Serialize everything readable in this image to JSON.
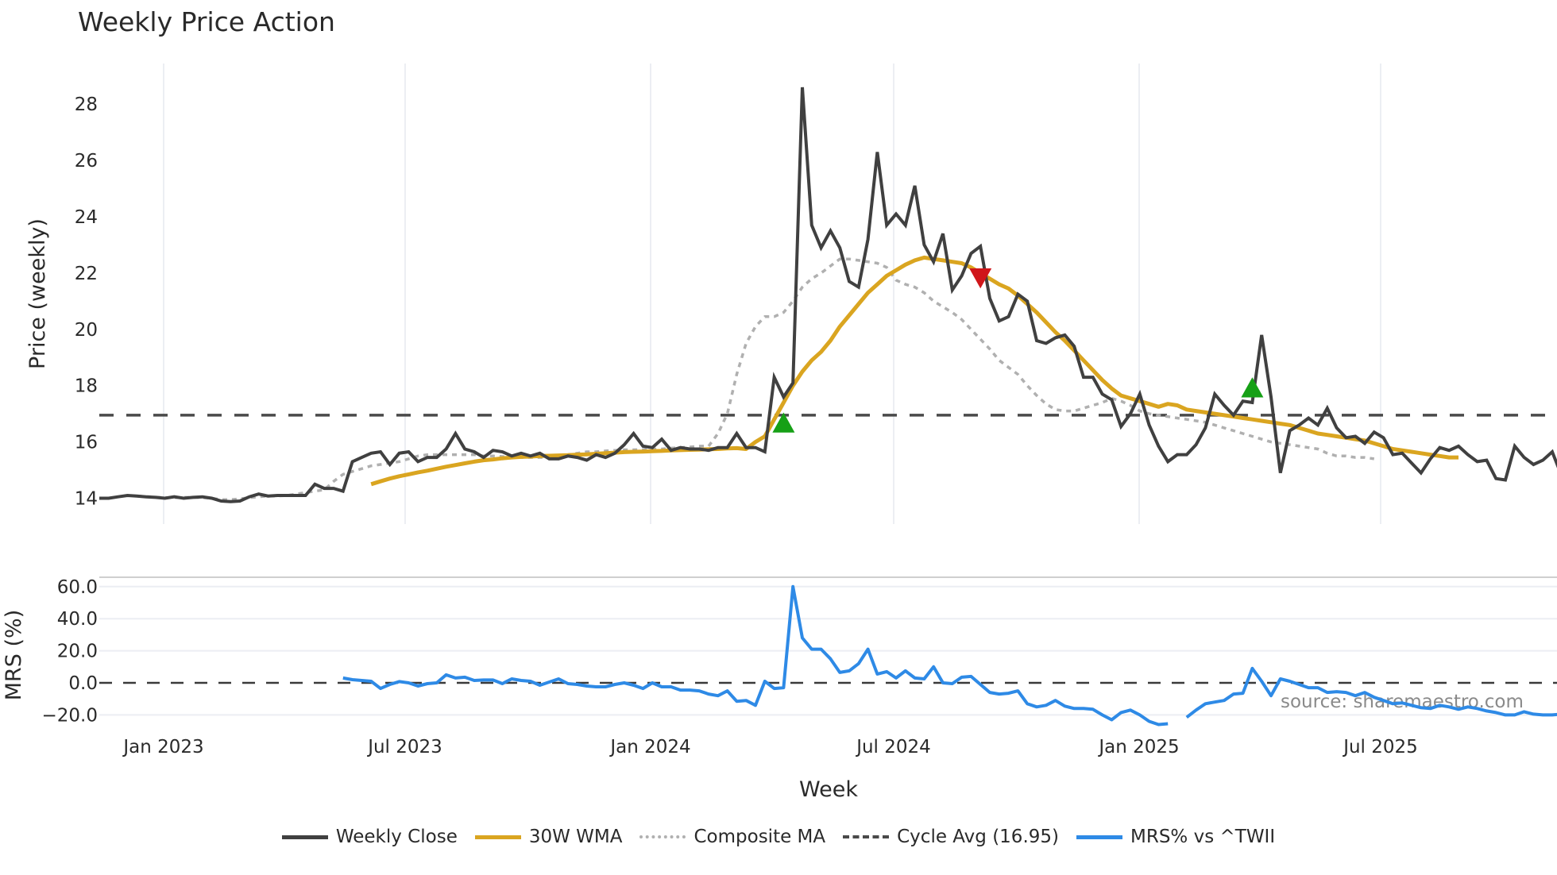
{
  "title": "Weekly Price Action",
  "chart_data": [
    {
      "type": "line",
      "panel": "price",
      "title": "Weekly Price Action",
      "ylabel": "Price (weekly)",
      "xlabel": "Week",
      "ylim": [
        13.2,
        29.2
      ],
      "yticks": [
        14,
        16,
        18,
        20,
        22,
        24,
        26,
        28
      ],
      "xticks": [
        "Jan 2023",
        "Jul 2023",
        "Jan 2024",
        "Jul 2024",
        "Jan 2025",
        "Jul 2025"
      ],
      "grid": "vertical",
      "series": [
        {
          "name": "Weekly Close",
          "color": "#404040",
          "values": [
            14.0,
            14.0,
            14.05,
            14.1,
            14.08,
            14.05,
            14.03,
            14.0,
            14.05,
            14.0,
            14.03,
            14.05,
            14.0,
            13.9,
            13.88,
            13.9,
            14.05,
            14.15,
            14.08,
            14.1,
            14.1,
            14.1,
            14.1,
            14.5,
            14.35,
            14.35,
            14.25,
            15.3,
            15.45,
            15.6,
            15.65,
            15.2,
            15.6,
            15.65,
            15.3,
            15.45,
            15.45,
            15.75,
            16.3,
            15.75,
            15.65,
            15.45,
            15.7,
            15.65,
            15.5,
            15.6,
            15.5,
            15.6,
            15.4,
            15.4,
            15.5,
            15.45,
            15.35,
            15.55,
            15.45,
            15.6,
            15.9,
            16.3,
            15.85,
            15.8,
            16.1,
            15.7,
            15.8,
            15.75,
            15.75,
            15.7,
            15.8,
            15.8,
            16.3,
            15.8,
            15.8,
            15.65,
            18.3,
            17.6,
            18.1,
            28.6,
            23.7,
            22.9,
            23.5,
            22.9,
            21.7,
            21.5,
            23.2,
            26.3,
            23.7,
            24.1,
            23.7,
            25.1,
            23.0,
            22.4,
            23.4,
            21.4,
            21.9,
            22.7,
            22.95,
            21.1,
            20.3,
            20.45,
            21.25,
            21.0,
            19.6,
            19.5,
            19.7,
            19.8,
            19.4,
            18.3,
            18.3,
            17.7,
            17.5,
            16.55,
            17.0,
            17.7,
            16.6,
            15.85,
            15.3,
            15.55,
            15.55,
            15.9,
            16.5,
            17.7,
            17.3,
            16.95,
            17.45,
            17.4,
            19.8,
            17.6,
            14.9,
            16.4,
            16.6,
            16.85,
            16.6,
            17.2,
            16.5,
            16.15,
            16.2,
            15.95,
            16.35,
            16.15,
            15.55,
            15.6,
            15.25,
            14.9,
            15.4,
            15.8,
            15.7,
            15.85,
            15.55,
            15.3,
            15.35,
            14.7,
            14.65,
            15.85,
            15.45,
            15.2,
            15.35,
            15.65,
            14.8
          ]
        },
        {
          "name": "30W WMA",
          "color": "#DAA520",
          "start_index": 29,
          "values": [
            14.5,
            14.6,
            14.7,
            14.78,
            14.85,
            14.92,
            14.98,
            15.05,
            15.12,
            15.18,
            15.24,
            15.3,
            15.35,
            15.38,
            15.42,
            15.45,
            15.47,
            15.48,
            15.5,
            15.51,
            15.52,
            15.53,
            15.55,
            15.56,
            15.58,
            15.6,
            15.62,
            15.64,
            15.65,
            15.66,
            15.67,
            15.68,
            15.7,
            15.71,
            15.72,
            15.73,
            15.74,
            15.75,
            15.77,
            15.78,
            15.75,
            16.0,
            16.2,
            16.8,
            17.4,
            18.0,
            18.5,
            18.9,
            19.2,
            19.6,
            20.1,
            20.5,
            20.9,
            21.3,
            21.6,
            21.9,
            22.1,
            22.3,
            22.45,
            22.55,
            22.5,
            22.45,
            22.4,
            22.35,
            22.2,
            22.0,
            21.8,
            21.6,
            21.45,
            21.2,
            20.9,
            20.6,
            20.25,
            19.9,
            19.6,
            19.25,
            18.9,
            18.55,
            18.2,
            17.9,
            17.65,
            17.55,
            17.45,
            17.35,
            17.25,
            17.35,
            17.3,
            17.15,
            17.1,
            17.05,
            17.0,
            16.95,
            16.9,
            16.85,
            16.8,
            16.75,
            16.7,
            16.65,
            16.6,
            16.5,
            16.4,
            16.3,
            16.25,
            16.2,
            16.15,
            16.1,
            16.05,
            15.95,
            15.85,
            15.75,
            15.7,
            15.65,
            15.6,
            15.55,
            15.5,
            15.45,
            15.45
          ]
        },
        {
          "name": "Composite MA",
          "color": "#B0B0B0",
          "start_index": 4,
          "values": [
            14.08,
            14.06,
            14.04,
            14.02,
            14.02,
            14.03,
            14.03,
            14.02,
            14.0,
            13.95,
            13.95,
            13.98,
            14.02,
            14.05,
            14.08,
            14.08,
            14.1,
            14.15,
            14.2,
            14.25,
            14.3,
            14.6,
            14.85,
            14.95,
            15.05,
            15.15,
            15.2,
            15.25,
            15.3,
            15.4,
            15.5,
            15.55,
            15.55,
            15.55,
            15.55,
            15.55,
            15.55,
            15.5,
            15.5,
            15.48,
            15.45,
            15.45,
            15.45,
            15.45,
            15.45,
            15.5,
            15.55,
            15.6,
            15.65,
            15.65,
            15.68,
            15.7,
            15.72,
            15.72,
            15.73,
            15.75,
            15.75,
            15.78,
            15.8,
            15.82,
            15.85,
            15.85,
            16.3,
            17.0,
            18.4,
            19.5,
            20.1,
            20.45,
            20.45,
            20.6,
            21.0,
            21.5,
            21.8,
            22.0,
            22.25,
            22.5,
            22.5,
            22.45,
            22.4,
            22.35,
            22.2,
            21.75,
            21.6,
            21.5,
            21.3,
            21.0,
            20.8,
            20.6,
            20.35,
            20.0,
            19.65,
            19.3,
            18.9,
            18.65,
            18.4,
            18.0,
            17.65,
            17.35,
            17.15,
            17.1,
            17.1,
            17.2,
            17.3,
            17.4,
            17.55,
            17.45,
            17.3,
            17.1,
            17.0,
            16.95,
            16.9,
            16.85,
            16.8,
            16.75,
            16.7,
            16.6,
            16.5,
            16.4,
            16.3,
            16.2,
            16.1,
            16.0,
            15.95,
            15.9,
            15.85,
            15.8,
            15.75,
            15.6,
            15.5,
            15.5,
            15.45,
            15.45,
            15.4
          ]
        },
        {
          "name": "Cycle Avg (16.95)",
          "color": "#4a4a4a",
          "constant": 16.95
        }
      ],
      "markers": [
        {
          "type": "buy",
          "shape": "triangle-up",
          "color": "#16A016",
          "index": 73,
          "value": 16.65
        },
        {
          "type": "sell",
          "shape": "triangle-down",
          "color": "#D0161A",
          "index": 94,
          "value": 21.85
        },
        {
          "type": "buy",
          "shape": "triangle-up",
          "color": "#16A016",
          "index": 123,
          "value": 17.9
        }
      ]
    },
    {
      "type": "line",
      "panel": "mrs",
      "ylabel": "MRS (%)",
      "xlabel": "Week",
      "ylim": [
        -26,
        62
      ],
      "yticks": [
        "60.0",
        "40.0",
        "20.0",
        "0.0",
        "−20.0"
      ],
      "ytick_values": [
        60,
        40,
        20,
        0,
        -20
      ],
      "zero_line": "dashed",
      "series": [
        {
          "name": "MRS% vs ^TWII",
          "color": "#2E8AE6",
          "start_index": 26,
          "values": [
            3,
            2,
            1.5,
            1,
            -3.5,
            -1,
            0.8,
            0,
            -2,
            -0.5,
            0,
            5,
            3,
            3.5,
            1.5,
            1.8,
            1.8,
            -0.5,
            2.5,
            1.5,
            1,
            -1.5,
            0.5,
            2.5,
            -0.5,
            -1,
            -2,
            -2.5,
            -2.5,
            -1,
            0,
            -1.5,
            -3.5,
            0,
            -2.5,
            -2.5,
            -4.5,
            -4.5,
            -5,
            -7,
            -8,
            -5,
            -11.5,
            -11,
            -14,
            1,
            -3.5,
            -3,
            60,
            28,
            21,
            21,
            15,
            6.5,
            7.5,
            12,
            21,
            5.5,
            7,
            3,
            7.5,
            3,
            2.5,
            10,
            0,
            -0.5,
            3.5,
            4,
            -1,
            -6,
            -7,
            -6.5,
            -5,
            -13,
            -15,
            -14,
            -11,
            -14.5,
            -16,
            -16,
            -16.5,
            -20,
            -23,
            -18.5,
            -17,
            -20,
            -24,
            -26,
            -25.5,
            null,
            -21.5,
            -17,
            -13,
            -12,
            -11,
            -7,
            -6.5,
            9,
            1,
            -8,
            2.5,
            1,
            -1,
            -3,
            -3,
            -6,
            -5.5,
            -6,
            -8,
            -6,
            -9,
            -11,
            -13,
            -12.5,
            -14,
            -15.5,
            -16,
            -14,
            -15,
            -16.5,
            -15,
            -16,
            -17.5,
            -18.5,
            -20,
            -20,
            -18,
            -19.5,
            -20,
            -20,
            -19.5,
            -20,
            -21
          ]
        }
      ]
    }
  ],
  "axes": {
    "price_ylabel": "Price (weekly)",
    "mrs_ylabel": "MRS (%)",
    "xlabel": "Week",
    "price_yticks": [
      "14",
      "16",
      "18",
      "20",
      "22",
      "24",
      "26",
      "28"
    ],
    "mrs_yticks": [
      "60.0",
      "40.0",
      "20.0",
      "0.0",
      "−20.0"
    ],
    "xticks": [
      "Jan 2023",
      "Jul 2023",
      "Jan 2024",
      "Jul 2024",
      "Jan 2025",
      "Jul 2025"
    ]
  },
  "watermark": "source: sharemaestro.com",
  "legend": [
    {
      "label": "Weekly Close",
      "color": "#404040",
      "style": "solid"
    },
    {
      "label": "30W WMA",
      "color": "#DAA520",
      "style": "solid"
    },
    {
      "label": "Composite MA",
      "color": "#B0B0B0",
      "style": "dotted"
    },
    {
      "label": "Cycle Avg (16.95)",
      "color": "#4a4a4a",
      "style": "dashed"
    },
    {
      "label": "MRS% vs ^TWII",
      "color": "#2E8AE6",
      "style": "solid"
    }
  ]
}
